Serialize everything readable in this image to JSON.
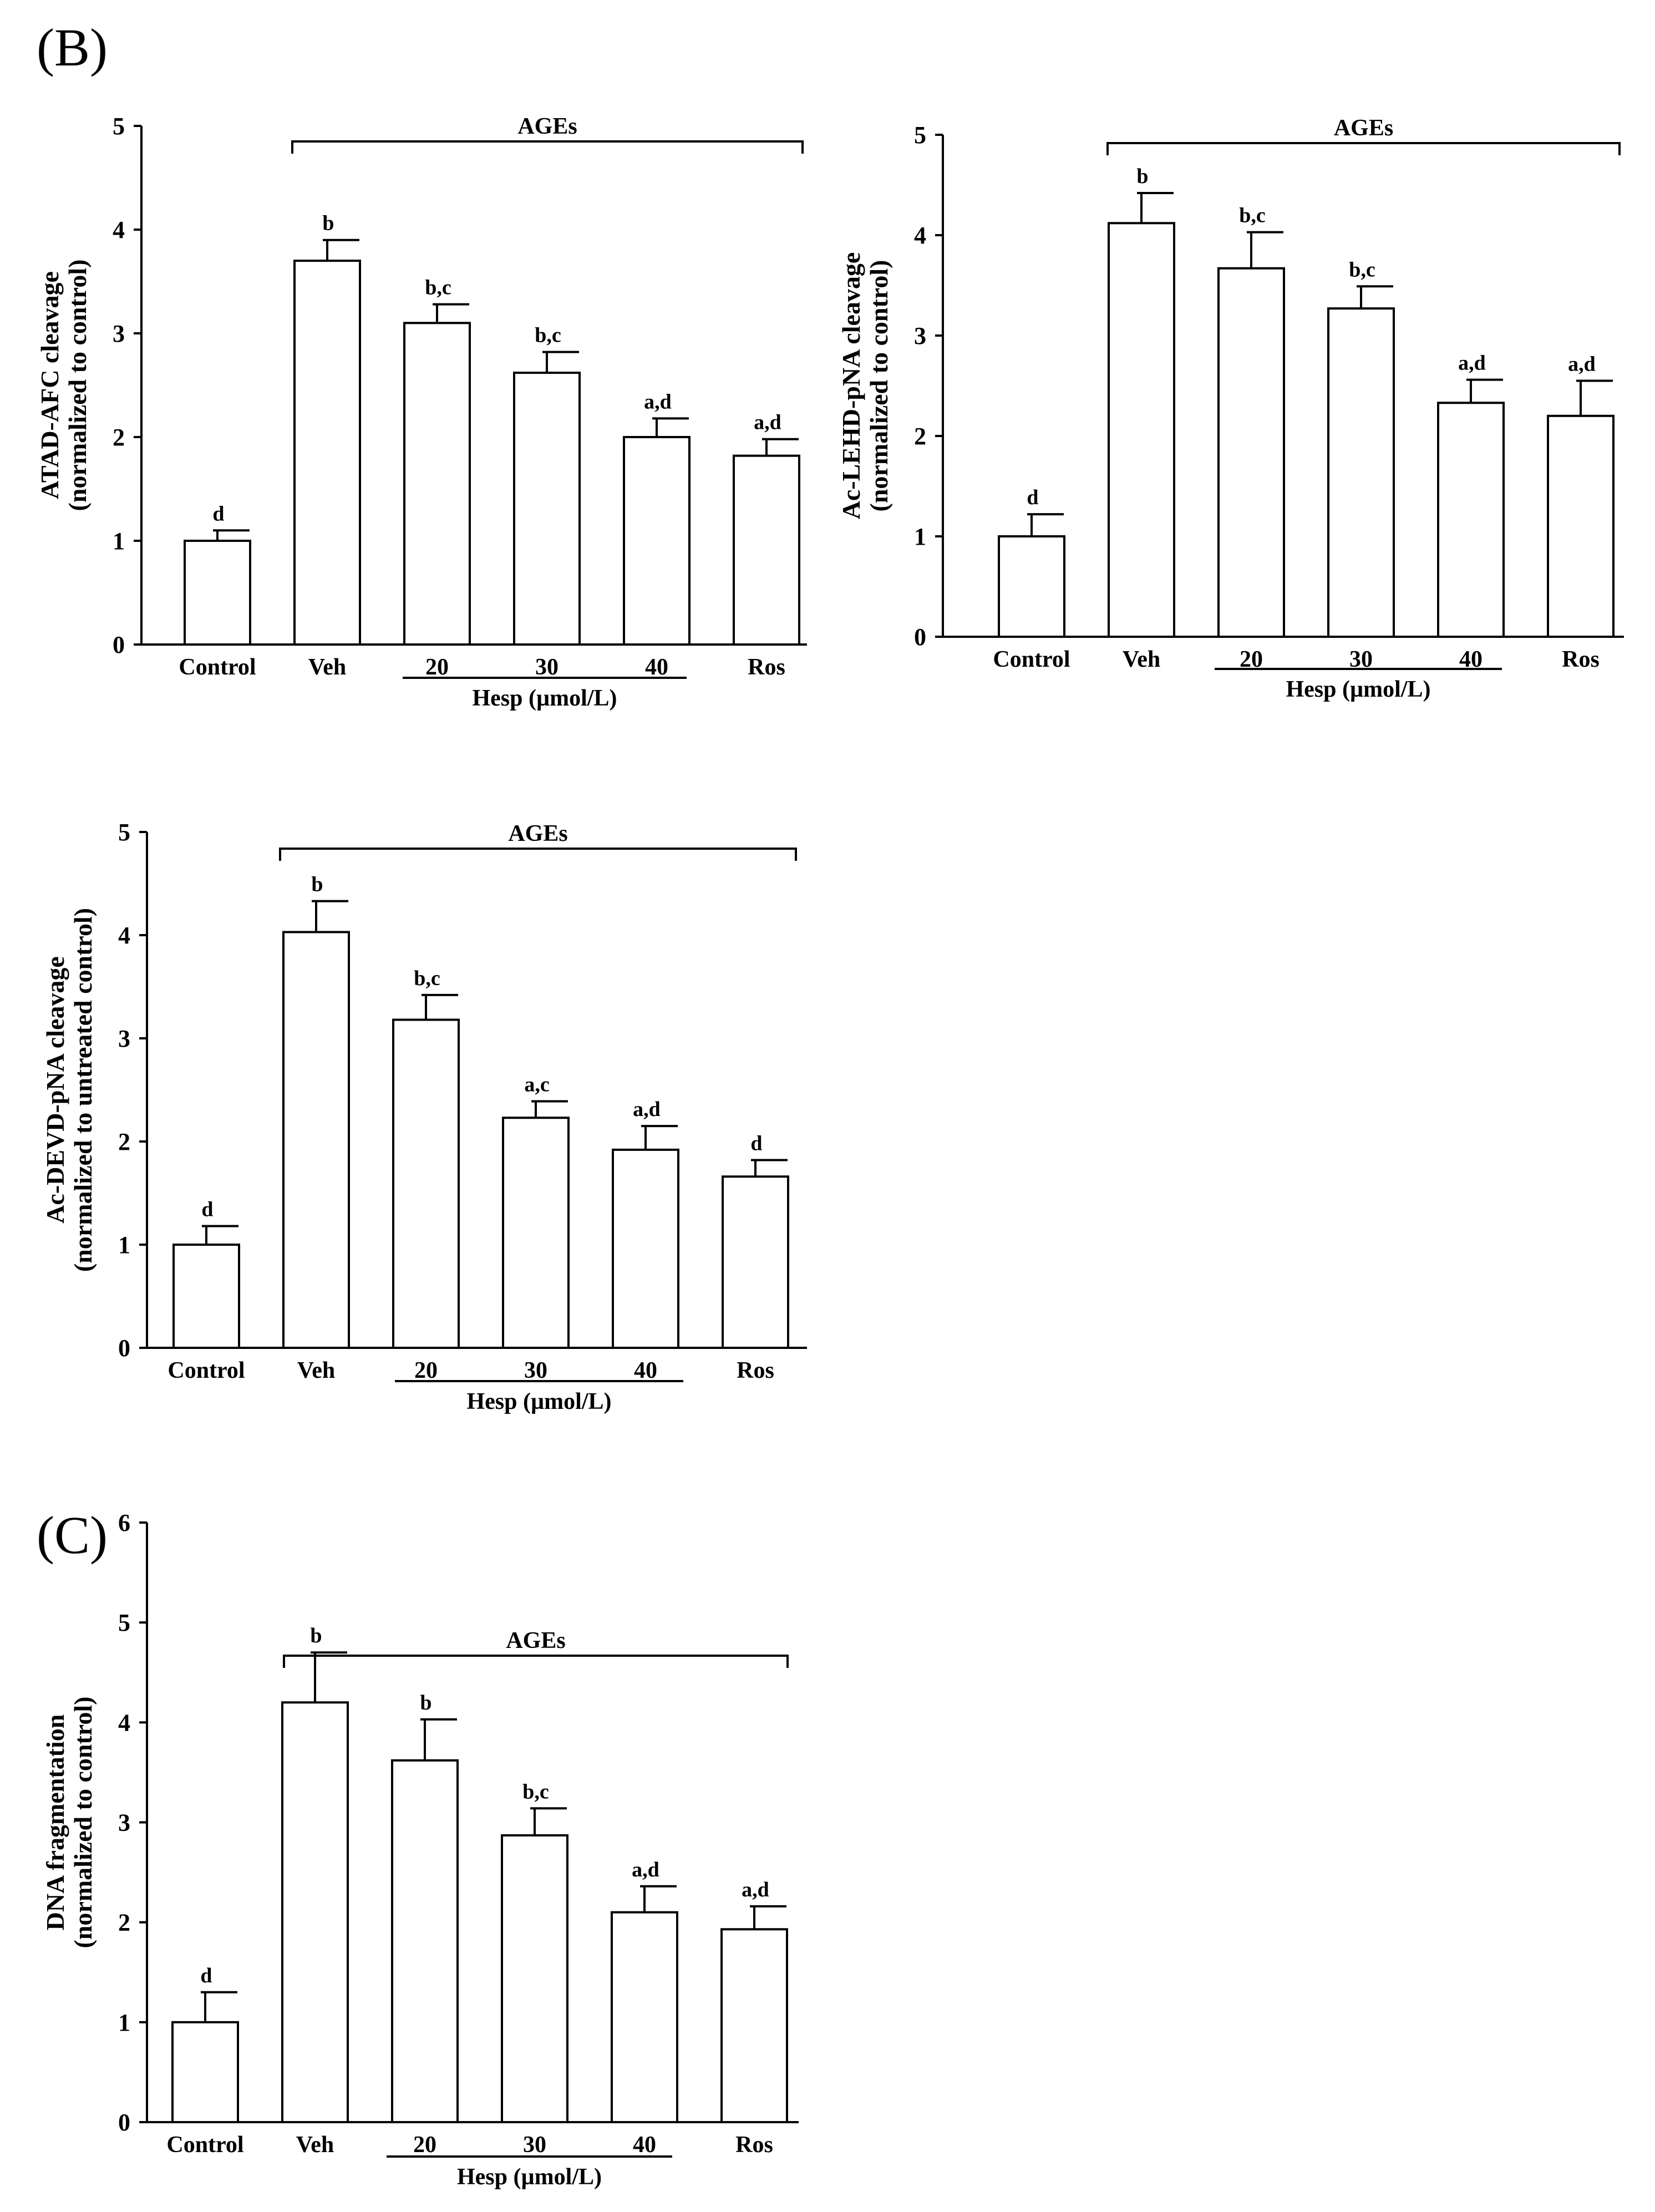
{
  "panel_labels": {
    "B": "(B)",
    "C": "(C)"
  },
  "chart_data": [
    {
      "type": "bar",
      "id": "chart-atad-afc",
      "title": "",
      "ylabel": [
        "ATAD-AFC cleavage",
        "(normalized to control)"
      ],
      "xlabel": "",
      "ylim": [
        0,
        5
      ],
      "yticks": [
        0,
        1,
        2,
        3,
        4,
        5
      ],
      "categories": [
        "Control",
        "Veh",
        "20",
        "30",
        "40",
        "Ros"
      ],
      "values": [
        1.0,
        3.7,
        3.1,
        2.62,
        2.0,
        1.82
      ],
      "errors": [
        0.1,
        0.2,
        0.18,
        0.2,
        0.18,
        0.16
      ],
      "significance": [
        "d",
        "b",
        "b,c",
        "b,c",
        "a,d",
        "a,d"
      ],
      "bracket_label": "AGEs",
      "group_label": "Hesp (µmol/L)"
    },
    {
      "type": "bar",
      "id": "chart-ac-lehd",
      "title": "",
      "ylabel": [
        "Ac-LEHD-pNA cleavage",
        "(normalized to control)"
      ],
      "xlabel": "",
      "ylim": [
        0,
        5
      ],
      "yticks": [
        0,
        1,
        2,
        3,
        4,
        5
      ],
      "categories": [
        "Control",
        "Veh",
        "20",
        "30",
        "40",
        "Ros"
      ],
      "values": [
        1.0,
        4.12,
        3.67,
        3.27,
        2.33,
        2.2
      ],
      "errors": [
        0.22,
        0.3,
        0.36,
        0.22,
        0.23,
        0.35
      ],
      "significance": [
        "d",
        "b",
        "b,c",
        "b,c",
        "a,d",
        "a,d"
      ],
      "bracket_label": "AGEs",
      "group_label": "Hesp (µmol/L)"
    },
    {
      "type": "bar",
      "id": "chart-ac-devd",
      "title": "",
      "ylabel": [
        "Ac-DEVD-pNA cleavage",
        "(normalized to untreated control)"
      ],
      "xlabel": "",
      "ylim": [
        0,
        5
      ],
      "yticks": [
        0,
        1,
        2,
        3,
        4,
        5
      ],
      "categories": [
        "Control",
        "Veh",
        "20",
        "30",
        "40",
        "Ros"
      ],
      "values": [
        1.0,
        4.03,
        3.18,
        2.23,
        1.92,
        1.66
      ],
      "errors": [
        0.18,
        0.3,
        0.24,
        0.16,
        0.23,
        0.16
      ],
      "significance": [
        "d",
        "b",
        "b,c",
        "a,c",
        "a,d",
        "d"
      ],
      "bracket_label": "AGEs",
      "group_label": "Hesp (µmol/L)"
    },
    {
      "type": "bar",
      "id": "chart-dna-fragmentation",
      "title": "",
      "ylabel": [
        "DNA fragmentation",
        "(normalized to control)"
      ],
      "xlabel": "",
      "ylim": [
        0,
        6
      ],
      "yticks": [
        0,
        1,
        2,
        3,
        4,
        5,
        6
      ],
      "categories": [
        "Control",
        "Veh",
        "20",
        "30",
        "40",
        "Ros"
      ],
      "values": [
        1.0,
        4.2,
        3.62,
        2.87,
        2.1,
        1.93
      ],
      "errors": [
        0.3,
        0.5,
        0.41,
        0.27,
        0.26,
        0.23
      ],
      "significance": [
        "d",
        "b",
        "b",
        "b,c",
        "a,d",
        "a,d"
      ],
      "bracket_label": "AGEs",
      "group_label": "Hesp (µmol/L)"
    }
  ]
}
